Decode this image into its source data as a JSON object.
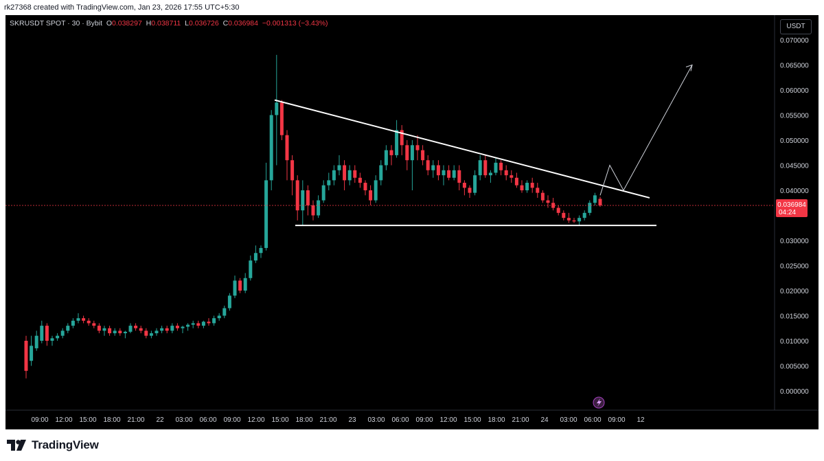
{
  "header": {
    "credit": "rk27368 created with TradingView.com, Jan 23, 2026 17:55 UTC+5:30"
  },
  "legend": {
    "symbol": "SKRUSDT SPOT · 30 · Bybit",
    "o_label": "O",
    "o": "0.038297",
    "h_label": "H",
    "h": "0.038711",
    "l_label": "L",
    "l": "0.036726",
    "c_label": "C",
    "c": "0.036984",
    "change": "−0.001313 (−3.43%)"
  },
  "currency_button": "USDT",
  "price_badge": {
    "price": "0.036984",
    "countdown": "04:24"
  },
  "footer": {
    "brand": "TradingView"
  },
  "colors": {
    "up": "#26a69a",
    "down": "#f23645",
    "background": "#000000",
    "axis_text": "#d1d4dc"
  },
  "chart_data": {
    "type": "candlestick",
    "symbol": "SKRUSDT",
    "interval": "30",
    "exchange": "Bybit",
    "y_ticks": [
      0.0,
      0.005,
      0.01,
      0.015,
      0.02,
      0.025,
      0.03,
      0.04,
      0.045,
      0.05,
      0.055,
      0.06,
      0.065,
      0.07
    ],
    "y_tick_labels": [
      "0.000000",
      "0.005000",
      "0.010000",
      "0.015000",
      "0.020000",
      "0.025000",
      "0.030000",
      "0.040000",
      "0.045000",
      "0.050000",
      "0.055000",
      "0.060000",
      "0.065000",
      "0.070000"
    ],
    "x_tick_labels": [
      "09:00",
      "12:00",
      "15:00",
      "18:00",
      "21:00",
      "22",
      "03:00",
      "06:00",
      "09:00",
      "12:00",
      "15:00",
      "18:00",
      "21:00",
      "23",
      "03:00",
      "06:00",
      "09:00",
      "12:00",
      "15:00",
      "18:00",
      "21:00",
      "24",
      "03:00",
      "06:00",
      "09:00",
      "12"
    ],
    "last_price": 0.036984,
    "candles": [
      [
        0.01,
        0.011,
        0.0025,
        0.004
      ],
      [
        0.006,
        0.011,
        0.005,
        0.009
      ],
      [
        0.0085,
        0.012,
        0.008,
        0.011
      ],
      [
        0.01,
        0.014,
        0.0095,
        0.013
      ],
      [
        0.013,
        0.0135,
        0.009,
        0.01
      ],
      [
        0.01,
        0.011,
        0.009,
        0.0105
      ],
      [
        0.0105,
        0.0115,
        0.01,
        0.011
      ],
      [
        0.011,
        0.0125,
        0.0105,
        0.012
      ],
      [
        0.012,
        0.0135,
        0.0115,
        0.013
      ],
      [
        0.013,
        0.0145,
        0.0125,
        0.014
      ],
      [
        0.014,
        0.0155,
        0.0135,
        0.0145
      ],
      [
        0.0145,
        0.015,
        0.0135,
        0.014
      ],
      [
        0.014,
        0.0145,
        0.013,
        0.0135
      ],
      [
        0.0135,
        0.014,
        0.0125,
        0.013
      ],
      [
        0.013,
        0.0135,
        0.0115,
        0.012
      ],
      [
        0.012,
        0.013,
        0.011,
        0.0125
      ],
      [
        0.0125,
        0.013,
        0.011,
        0.0115
      ],
      [
        0.0115,
        0.0125,
        0.011,
        0.012
      ],
      [
        0.012,
        0.0125,
        0.011,
        0.0115
      ],
      [
        0.0115,
        0.012,
        0.0105,
        0.0118
      ],
      [
        0.0118,
        0.0135,
        0.0115,
        0.013
      ],
      [
        0.013,
        0.0135,
        0.012,
        0.0125
      ],
      [
        0.0125,
        0.013,
        0.0115,
        0.012
      ],
      [
        0.012,
        0.0125,
        0.0105,
        0.011
      ],
      [
        0.011,
        0.012,
        0.0105,
        0.0115
      ],
      [
        0.0115,
        0.0125,
        0.011,
        0.012
      ],
      [
        0.012,
        0.013,
        0.0115,
        0.0125
      ],
      [
        0.0125,
        0.013,
        0.0115,
        0.012
      ],
      [
        0.012,
        0.0135,
        0.0115,
        0.013
      ],
      [
        0.013,
        0.0135,
        0.012,
        0.0125
      ],
      [
        0.0125,
        0.013,
        0.0115,
        0.0128
      ],
      [
        0.0128,
        0.0135,
        0.012,
        0.0132
      ],
      [
        0.0132,
        0.014,
        0.0125,
        0.0135
      ],
      [
        0.0135,
        0.014,
        0.0125,
        0.013
      ],
      [
        0.013,
        0.014,
        0.0125,
        0.0138
      ],
      [
        0.0138,
        0.0145,
        0.013,
        0.0135
      ],
      [
        0.0135,
        0.015,
        0.013,
        0.0145
      ],
      [
        0.0145,
        0.0155,
        0.014,
        0.015
      ],
      [
        0.015,
        0.017,
        0.0145,
        0.0165
      ],
      [
        0.0165,
        0.0195,
        0.016,
        0.019
      ],
      [
        0.019,
        0.023,
        0.0185,
        0.022
      ],
      [
        0.022,
        0.0225,
        0.0195,
        0.02
      ],
      [
        0.02,
        0.0235,
        0.0195,
        0.0225
      ],
      [
        0.0225,
        0.027,
        0.022,
        0.026
      ],
      [
        0.026,
        0.029,
        0.0255,
        0.0275
      ],
      [
        0.0275,
        0.029,
        0.0265,
        0.0285
      ],
      [
        0.0285,
        0.0455,
        0.028,
        0.042
      ],
      [
        0.042,
        0.056,
        0.04,
        0.055
      ],
      [
        0.055,
        0.067,
        0.045,
        0.0575
      ],
      [
        0.0575,
        0.058,
        0.05,
        0.051
      ],
      [
        0.051,
        0.052,
        0.042,
        0.046
      ],
      [
        0.046,
        0.047,
        0.039,
        0.042
      ],
      [
        0.042,
        0.043,
        0.034,
        0.036
      ],
      [
        0.036,
        0.042,
        0.033,
        0.04
      ],
      [
        0.04,
        0.041,
        0.035,
        0.037
      ],
      [
        0.037,
        0.038,
        0.034,
        0.035
      ],
      [
        0.035,
        0.039,
        0.0345,
        0.038
      ],
      [
        0.038,
        0.042,
        0.0375,
        0.041
      ],
      [
        0.041,
        0.0435,
        0.04,
        0.042
      ],
      [
        0.042,
        0.045,
        0.041,
        0.044
      ],
      [
        0.044,
        0.047,
        0.043,
        0.045
      ],
      [
        0.045,
        0.046,
        0.04,
        0.042
      ],
      [
        0.042,
        0.045,
        0.041,
        0.044
      ],
      [
        0.044,
        0.045,
        0.0415,
        0.0425
      ],
      [
        0.0425,
        0.0435,
        0.0405,
        0.0415
      ],
      [
        0.0415,
        0.042,
        0.039,
        0.04
      ],
      [
        0.04,
        0.041,
        0.037,
        0.038
      ],
      [
        0.038,
        0.043,
        0.0375,
        0.042
      ],
      [
        0.042,
        0.046,
        0.041,
        0.045
      ],
      [
        0.045,
        0.049,
        0.044,
        0.048
      ],
      [
        0.048,
        0.049,
        0.045,
        0.047
      ],
      [
        0.047,
        0.054,
        0.0465,
        0.052
      ],
      [
        0.052,
        0.053,
        0.047,
        0.049
      ],
      [
        0.049,
        0.05,
        0.044,
        0.046
      ],
      [
        0.046,
        0.05,
        0.04,
        0.049
      ],
      [
        0.049,
        0.051,
        0.046,
        0.048
      ],
      [
        0.048,
        0.049,
        0.045,
        0.046
      ],
      [
        0.046,
        0.047,
        0.043,
        0.044
      ],
      [
        0.044,
        0.046,
        0.0425,
        0.045
      ],
      [
        0.045,
        0.046,
        0.042,
        0.043
      ],
      [
        0.043,
        0.045,
        0.041,
        0.044
      ],
      [
        0.044,
        0.045,
        0.042,
        0.0425
      ],
      [
        0.0425,
        0.045,
        0.042,
        0.044
      ],
      [
        0.044,
        0.045,
        0.04,
        0.0415
      ],
      [
        0.0415,
        0.042,
        0.039,
        0.0405
      ],
      [
        0.0405,
        0.041,
        0.0385,
        0.0395
      ],
      [
        0.0395,
        0.044,
        0.039,
        0.043
      ],
      [
        0.043,
        0.047,
        0.042,
        0.046
      ],
      [
        0.046,
        0.047,
        0.0425,
        0.043
      ],
      [
        0.043,
        0.044,
        0.0415,
        0.0435
      ],
      [
        0.0435,
        0.0465,
        0.043,
        0.0455
      ],
      [
        0.0455,
        0.046,
        0.043,
        0.044
      ],
      [
        0.044,
        0.045,
        0.042,
        0.043
      ],
      [
        0.043,
        0.044,
        0.0415,
        0.0425
      ],
      [
        0.0425,
        0.0435,
        0.0405,
        0.041
      ],
      [
        0.041,
        0.042,
        0.0395,
        0.04
      ],
      [
        0.04,
        0.042,
        0.0395,
        0.0415
      ],
      [
        0.0415,
        0.0425,
        0.0395,
        0.0405
      ],
      [
        0.0405,
        0.0415,
        0.0385,
        0.0395
      ],
      [
        0.0395,
        0.04,
        0.0375,
        0.038
      ],
      [
        0.038,
        0.039,
        0.0365,
        0.0375
      ],
      [
        0.0375,
        0.0385,
        0.036,
        0.0365
      ],
      [
        0.0365,
        0.037,
        0.035,
        0.0355
      ],
      [
        0.0355,
        0.036,
        0.034,
        0.0345
      ],
      [
        0.0345,
        0.0355,
        0.0335,
        0.034
      ],
      [
        0.034,
        0.0345,
        0.0335,
        0.0338
      ],
      [
        0.0338,
        0.035,
        0.033,
        0.0345
      ],
      [
        0.0345,
        0.036,
        0.034,
        0.0355
      ],
      [
        0.0355,
        0.038,
        0.035,
        0.0375
      ],
      [
        0.0375,
        0.0395,
        0.037,
        0.039
      ],
      [
        0.0383,
        0.0387,
        0.0367,
        0.037
      ]
    ],
    "drawings": {
      "descending_trendline": [
        [
          0.058
        ],
        [
          0.0385
        ]
      ],
      "support_line": 0.033,
      "projected_path": [
        0.039,
        0.045,
        0.04,
        0.065
      ]
    }
  }
}
